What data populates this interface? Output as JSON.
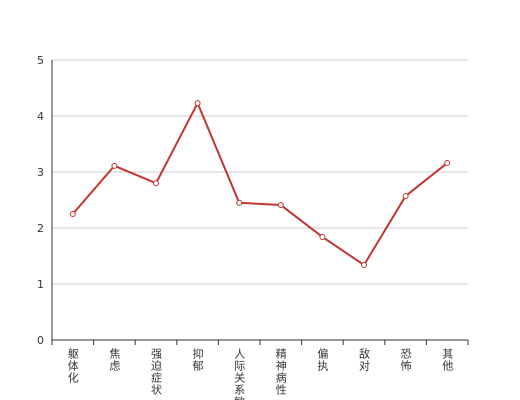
{
  "chart_data": {
    "type": "line",
    "categories": [
      "躯体化",
      "焦虑",
      "强迫症状",
      "抑郁",
      "人际关系敏感",
      "精神病性",
      "偏执",
      "敌对",
      "恐怖",
      "其他"
    ],
    "series": [
      {
        "color": "#c23531",
        "values": [
          2.25,
          3.11,
          2.8,
          4.23,
          2.45,
          2.41,
          1.84,
          1.34,
          2.57,
          3.16
        ]
      }
    ],
    "ylim": [
      0,
      5
    ],
    "yticks": [
      0,
      1,
      2,
      3,
      4,
      5
    ],
    "grid": true
  }
}
